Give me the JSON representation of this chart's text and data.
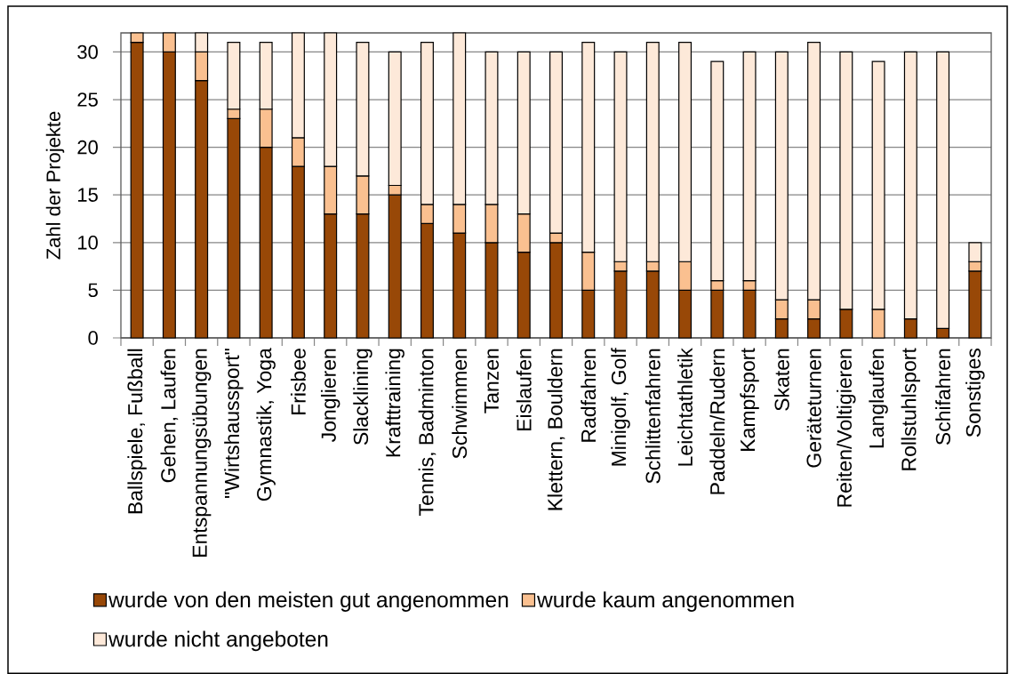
{
  "chart_data": {
    "type": "bar",
    "stacked": true,
    "ylabel": "Zahl der Projekte",
    "categories": [
      "Ballspiele, Fußball",
      "Gehen, Laufen",
      "Entspannungsübungen",
      "\"Wirtshaussport\"",
      "Gymnastik, Yoga",
      "Frisbee",
      "Jonglieren",
      "Slacklining",
      "Krafttraining",
      "Tennis, Badminton",
      "Schwimmen",
      "Tanzen",
      "Eislaufen",
      "Klettern, Bouldern",
      "Radfahren",
      "Minigolf, Golf",
      "Schlittenfahren",
      "Leichtathletik",
      "Paddeln/Rudern",
      "Kampfsport",
      "Skaten",
      "Geräteturnen",
      "Reiten/Voltigieren",
      "Langlaufen",
      "Rollstuhlsport",
      "Schifahren",
      "Sonstiges"
    ],
    "series": [
      {
        "name": "wurde von den meisten gut angenommen",
        "color": "#984807",
        "values": [
          31,
          30,
          27,
          23,
          20,
          18,
          13,
          13,
          15,
          12,
          11,
          10,
          9,
          10,
          5,
          7,
          7,
          5,
          5,
          5,
          2,
          2,
          3,
          0,
          2,
          1,
          7
        ]
      },
      {
        "name": "wurde kaum angenommen",
        "color": "#fac090",
        "values": [
          1,
          2,
          3,
          1,
          4,
          3,
          5,
          4,
          1,
          2,
          3,
          4,
          4,
          1,
          4,
          1,
          1,
          3,
          1,
          1,
          2,
          2,
          0,
          3,
          0,
          0,
          1
        ]
      },
      {
        "name": "wurde nicht angeboten",
        "color": "#fde9d9",
        "values": [
          0,
          0,
          2,
          7,
          7,
          11,
          14,
          14,
          14,
          17,
          18,
          16,
          17,
          19,
          22,
          22,
          23,
          23,
          23,
          24,
          26,
          27,
          27,
          26,
          28,
          29,
          2
        ]
      }
    ],
    "ylim": [
      0,
      32
    ],
    "yticks": [
      0,
      5,
      10,
      15,
      20,
      25,
      30
    ],
    "grid": "y",
    "legend": "bottom"
  }
}
